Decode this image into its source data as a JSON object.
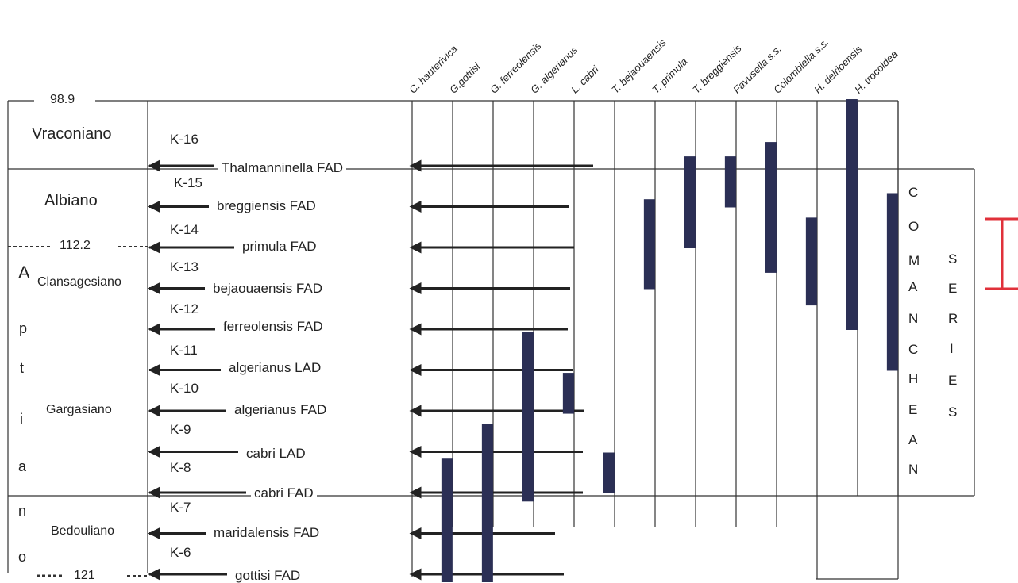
{
  "stages": {
    "vraconiano": "Vraconiano",
    "albiano": "Albiano",
    "clansagesiano": "Clansagesiano",
    "gargasiano": "Gargasiano",
    "bedouliano": "Bedouliano"
  },
  "aptiano_letters": [
    "A",
    "p",
    "t",
    "i",
    "a",
    "n",
    "o"
  ],
  "ages": {
    "top": "98.9",
    "mid": "112.2",
    "bottom": "121"
  },
  "zones": [
    "K-16",
    "K-15",
    "K-14",
    "K-13",
    "K-12",
    "K-11",
    "K-10",
    "K-9",
    "K-8",
    "K-7",
    "K-6"
  ],
  "events": [
    "Thalmanninella FAD",
    "breggiensis FAD",
    "primula FAD",
    "bejaouaensis FAD",
    "ferreolensis FAD",
    "algerianus LAD",
    "algerianus FAD",
    "cabri LAD",
    "cabri FAD",
    "maridalensis FAD",
    "gottisi FAD"
  ],
  "species": [
    "C. hauterivica",
    "G.gottisi",
    "G. ferreolensis",
    "G. algerianus",
    "L. cabri",
    "T. bejaouaensis",
    "T. primula",
    "T. breggiensis",
    "Favusella s.s.",
    "Colombiella s.s.",
    "H. delrioensis",
    "H. trocoidea"
  ],
  "comanchean": [
    "C",
    "O",
    "M",
    "A",
    "N",
    "C",
    "H",
    "E",
    "A",
    "N"
  ],
  "series": [
    "S",
    "E",
    "R",
    "I",
    "E",
    "S"
  ],
  "colors": {
    "range_bar": "#2b2f55",
    "bracket": "#e0303a",
    "lines": "#333333"
  },
  "chart_data": {
    "type": "range",
    "units": "K-zone event levels (0 = gottisi FAD, 10 = Thalmanninella FAD)",
    "ranges": [
      {
        "species": "G.gottisi",
        "from": -0.3,
        "to": 3.7
      },
      {
        "species": "C. hauterivica",
        "from": -0.3,
        "to": 2.85
      },
      {
        "species": "G. ferreolensis",
        "from": 1.8,
        "to": 5.95
      },
      {
        "species": "G. algerianus",
        "from": 3.95,
        "to": 4.95
      },
      {
        "species": "L. cabri",
        "from": 2.0,
        "to": 3.0
      },
      {
        "species": "T. bejaouaensis",
        "from": 7.0,
        "to": 9.2
      },
      {
        "species": "T. primula",
        "from": 8.0,
        "to": 10.25
      },
      {
        "species": "T. breggiensis",
        "from": 9.0,
        "to": 10.25
      },
      {
        "species": "Favusella s.s.",
        "from": 7.4,
        "to": 10.6
      },
      {
        "species": "Colombiella s.s.",
        "from": 6.6,
        "to": 8.75
      },
      {
        "species": "H. delrioensis",
        "from": 6.0,
        "to": 11.65
      },
      {
        "species": "H. trocoidea",
        "from": 5.0,
        "to": 9.35
      }
    ]
  }
}
